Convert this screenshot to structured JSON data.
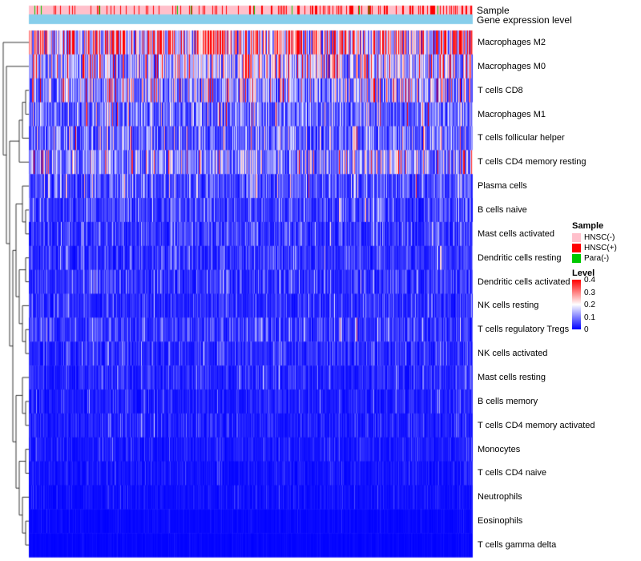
{
  "annotations": {
    "sample_label": "Sample",
    "gene_expr_label": "Gene expression level"
  },
  "legend": {
    "sample_title": "Sample",
    "sample_items": [
      {
        "label": "HNSC(-)",
        "color": "#FFC0CB"
      },
      {
        "label": "HNSC(+)",
        "color": "#FF0000"
      },
      {
        "label": "Para(-)",
        "color": "#00C800"
      }
    ],
    "level_title": "Level",
    "level_ticks": [
      "0.4",
      "0.3",
      "0.2",
      "0.1",
      "0"
    ],
    "level_gradient": [
      "#FF0000",
      "#FFFFFF",
      "#0000FF"
    ]
  },
  "chart_data": {
    "type": "heatmap",
    "rows": [
      "Macrophages M2",
      "Macrophages M0",
      "T cells CD8",
      "Macrophages M1",
      "T cells follicular helper",
      "T cells CD4 memory resting",
      "Plasma cells",
      "B cells naive",
      "Mast cells activated",
      "Dendritic cells resting",
      "Dendritic cells activated",
      "NK cells resting",
      "T cells regulatory  Tregs",
      "NK cells activated",
      "Mast cells resting",
      "B cells memory",
      "T cells CD4 memory activated",
      "Monocytes",
      "T cells CD4 naive",
      "Neutrophils",
      "Eosinophils",
      "T cells gamma delta"
    ],
    "row_mean_level": [
      0.26,
      0.17,
      0.13,
      0.085,
      0.08,
      0.12,
      0.06,
      0.05,
      0.045,
      0.04,
      0.04,
      0.035,
      0.045,
      0.035,
      0.03,
      0.025,
      0.025,
      0.02,
      0.015,
      0.012,
      0.006,
      0.004
    ],
    "value_range": [
      0,
      0.4
    ],
    "colormap": {
      "low": "#0000FF",
      "mid": "#FFFFFF",
      "high": "#FF0000"
    },
    "column_annotation_rows": [
      "Sample",
      "Gene expression level"
    ],
    "sample_groups": [
      {
        "label": "HNSC(-)",
        "color": "#FFC0CB"
      },
      {
        "label": "HNSC(+)",
        "color": "#FF0000"
      },
      {
        "label": "Para(-)",
        "color": "#00C800"
      }
    ],
    "gene_expression_bar_color": "#87CEEB",
    "n_columns_rendered": 554,
    "row_dendrogram": [
      0,
      [
        1,
        [
          [
            [
              [
                2,
                3
              ],
              4
            ],
            5
          ],
          [
            [
              [
                6,
                [
                  7,
                  8
                ]
              ],
              [
                [
                  9,
                  10
                ],
                [
                  11,
                  [
                    12,
                    13
                  ]
                ]
              ]
            ],
            [
              [
                14,
                [
                  15,
                  16
                ]
              ],
              [
                [
                  17,
                  18
                ],
                [
                  19,
                  [
                    20,
                    21
                  ]
                ]
              ]
            ]
          ]
        ]
      ]
    ]
  }
}
